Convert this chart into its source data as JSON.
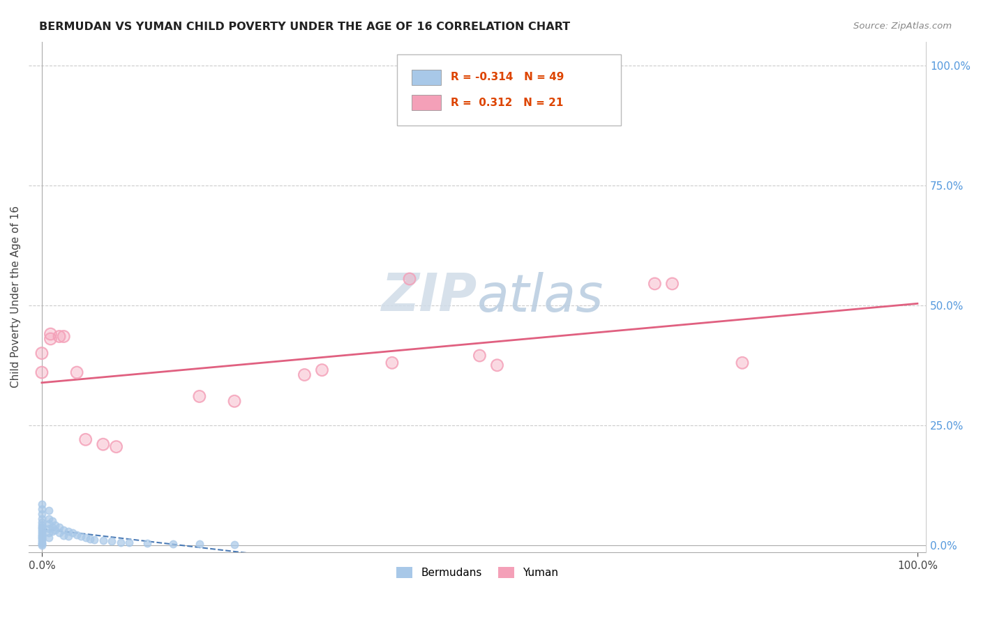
{
  "title": "BERMUDAN VS YUMAN CHILD POVERTY UNDER THE AGE OF 16 CORRELATION CHART",
  "source": "Source: ZipAtlas.com",
  "ylabel": "Child Poverty Under the Age of 16",
  "bermudan_r": "-0.314",
  "bermudan_n": "49",
  "yuman_r": "0.312",
  "yuman_n": "21",
  "bermudan_color": "#a8c8e8",
  "yuman_color": "#f4a0b8",
  "bermudan_line_color": "#4a7ab5",
  "yuman_line_color": "#e06080",
  "watermark_color": "#d0dce8",
  "bermudan_points": [
    [
      0.0,
      0.085
    ],
    [
      0.0,
      0.075
    ],
    [
      0.0,
      0.065
    ],
    [
      0.0,
      0.055
    ],
    [
      0.0,
      0.048
    ],
    [
      0.0,
      0.042
    ],
    [
      0.0,
      0.038
    ],
    [
      0.0,
      0.034
    ],
    [
      0.0,
      0.03
    ],
    [
      0.0,
      0.026
    ],
    [
      0.0,
      0.022
    ],
    [
      0.0,
      0.018
    ],
    [
      0.0,
      0.015
    ],
    [
      0.0,
      0.012
    ],
    [
      0.0,
      0.008
    ],
    [
      0.0,
      0.004
    ],
    [
      0.0,
      0.002
    ],
    [
      0.0,
      0.0
    ],
    [
      0.008,
      0.072
    ],
    [
      0.008,
      0.055
    ],
    [
      0.008,
      0.045
    ],
    [
      0.008,
      0.035
    ],
    [
      0.008,
      0.025
    ],
    [
      0.008,
      0.015
    ],
    [
      0.012,
      0.05
    ],
    [
      0.012,
      0.038
    ],
    [
      0.012,
      0.028
    ],
    [
      0.015,
      0.042
    ],
    [
      0.015,
      0.032
    ],
    [
      0.02,
      0.038
    ],
    [
      0.02,
      0.025
    ],
    [
      0.025,
      0.032
    ],
    [
      0.025,
      0.02
    ],
    [
      0.03,
      0.028
    ],
    [
      0.03,
      0.018
    ],
    [
      0.035,
      0.025
    ],
    [
      0.04,
      0.022
    ],
    [
      0.045,
      0.018
    ],
    [
      0.05,
      0.015
    ],
    [
      0.055,
      0.013
    ],
    [
      0.06,
      0.011
    ],
    [
      0.07,
      0.009
    ],
    [
      0.08,
      0.008
    ],
    [
      0.09,
      0.006
    ],
    [
      0.1,
      0.005
    ],
    [
      0.12,
      0.004
    ],
    [
      0.15,
      0.003
    ],
    [
      0.18,
      0.002
    ],
    [
      0.22,
      0.001
    ]
  ],
  "yuman_points": [
    [
      0.0,
      0.36
    ],
    [
      0.0,
      0.4
    ],
    [
      0.01,
      0.44
    ],
    [
      0.01,
      0.43
    ],
    [
      0.02,
      0.435
    ],
    [
      0.025,
      0.435
    ],
    [
      0.04,
      0.36
    ],
    [
      0.05,
      0.22
    ],
    [
      0.07,
      0.21
    ],
    [
      0.085,
      0.205
    ],
    [
      0.18,
      0.31
    ],
    [
      0.22,
      0.3
    ],
    [
      0.3,
      0.355
    ],
    [
      0.32,
      0.365
    ],
    [
      0.4,
      0.38
    ],
    [
      0.42,
      0.555
    ],
    [
      0.5,
      0.395
    ],
    [
      0.52,
      0.375
    ],
    [
      0.7,
      0.545
    ],
    [
      0.72,
      0.545
    ],
    [
      0.8,
      0.38
    ]
  ],
  "xlim": [
    0.0,
    1.0
  ],
  "ylim": [
    0.0,
    1.0
  ],
  "yticks": [
    0.0,
    0.25,
    0.5,
    0.75,
    1.0
  ],
  "ytick_labels": [
    "0.0%",
    "25.0%",
    "50.0%",
    "75.0%",
    "100.0%"
  ],
  "xtick_labels": [
    "0.0%",
    "100.0%"
  ]
}
